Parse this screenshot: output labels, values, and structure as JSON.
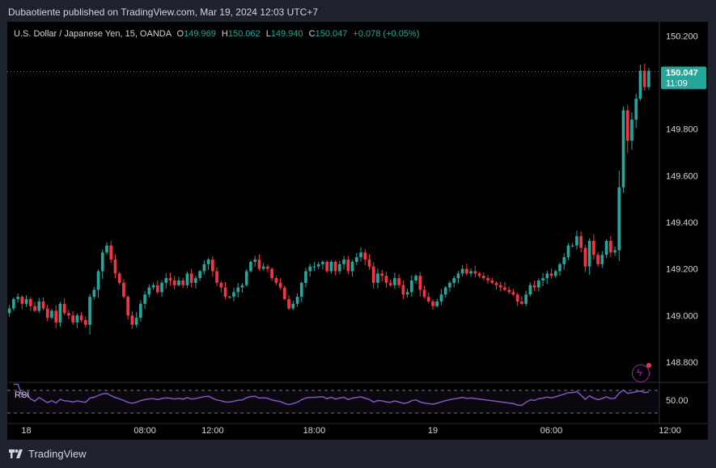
{
  "header": {
    "text": "Dubaotiente published on TradingView.com, Mar 19, 2024 12:03 UTC+7"
  },
  "legend": {
    "symbol": "U.S. Dollar / Japanese Yen, 15, OANDA",
    "o_label": "O",
    "o_value": "149.969",
    "h_label": "H",
    "h_value": "150.062",
    "l_label": "L",
    "l_value": "149.940",
    "c_label": "C",
    "c_value": "150.047",
    "change": "+0.078 (+0.05%)"
  },
  "price_tag": {
    "price": "150.047",
    "countdown": "11:09"
  },
  "rsi": {
    "label": "RSI",
    "level_label": "50.00"
  },
  "footer": {
    "brand": "TradingView"
  },
  "colors": {
    "up": "#26a69a",
    "down": "#f23645",
    "rsi_line": "#7e57c2",
    "background": "#000000",
    "panel": "#1e222d"
  },
  "icons": {
    "logo": "tradingview-logo-icon",
    "alert": "lightning-icon"
  },
  "chart_data": {
    "type": "candlestick",
    "ylim": [
      148.72,
      150.26
    ],
    "y_ticks": [
      150.2,
      149.8,
      149.6,
      149.4,
      149.2,
      149.0,
      148.8
    ],
    "y_tick_labels": [
      "150.200",
      "149.800",
      "149.600",
      "149.400",
      "149.200",
      "149.000",
      "148.800"
    ],
    "x_tick_labels": [
      "18",
      "08:00",
      "12:00",
      "18:00",
      "19",
      "06:00",
      "12:00"
    ],
    "x_tick_index": [
      4,
      32,
      48,
      72,
      100,
      128,
      156
    ],
    "last_price": 150.047,
    "close": [
      149.03,
      149.07,
      149.08,
      149.05,
      149.07,
      149.04,
      149.02,
      149.06,
      149.03,
      148.99,
      149.02,
      148.97,
      149.05,
      149.01,
      149.0,
      148.97,
      149.0,
      148.98,
      148.96,
      149.08,
      149.11,
      149.19,
      149.27,
      149.3,
      149.24,
      149.18,
      149.14,
      149.08,
      149.0,
      148.96,
      148.99,
      149.05,
      149.09,
      149.12,
      149.13,
      149.1,
      149.14,
      149.16,
      149.15,
      149.13,
      149.15,
      149.13,
      149.18,
      149.14,
      149.16,
      149.19,
      149.22,
      149.24,
      149.19,
      149.14,
      149.12,
      149.08,
      149.08,
      149.1,
      149.12,
      149.13,
      149.19,
      149.23,
      149.24,
      149.2,
      149.21,
      149.2,
      149.16,
      149.14,
      149.12,
      149.07,
      149.03,
      149.05,
      149.08,
      149.14,
      149.19,
      149.21,
      149.21,
      149.22,
      149.23,
      149.19,
      149.23,
      149.19,
      149.22,
      149.24,
      149.19,
      149.23,
      149.25,
      149.27,
      149.24,
      149.21,
      149.14,
      149.18,
      149.17,
      149.14,
      149.13,
      149.16,
      149.13,
      149.09,
      149.1,
      149.15,
      149.17,
      149.11,
      149.08,
      149.06,
      149.04,
      149.06,
      149.09,
      149.12,
      149.14,
      149.16,
      149.18,
      149.2,
      149.18,
      149.19,
      149.18,
      149.17,
      149.16,
      149.15,
      149.14,
      149.13,
      149.12,
      149.11,
      149.1,
      149.09,
      149.06,
      149.05,
      149.09,
      149.13,
      149.12,
      149.15,
      149.16,
      149.18,
      149.17,
      149.19,
      149.22,
      149.25,
      149.3,
      149.3,
      149.34,
      149.29,
      149.21,
      149.32,
      149.26,
      149.22,
      149.26,
      149.32,
      149.27,
      149.28,
      149.55,
      149.88,
      149.75,
      149.84,
      149.93,
      150.05,
      149.98,
      150.05
    ]
  }
}
